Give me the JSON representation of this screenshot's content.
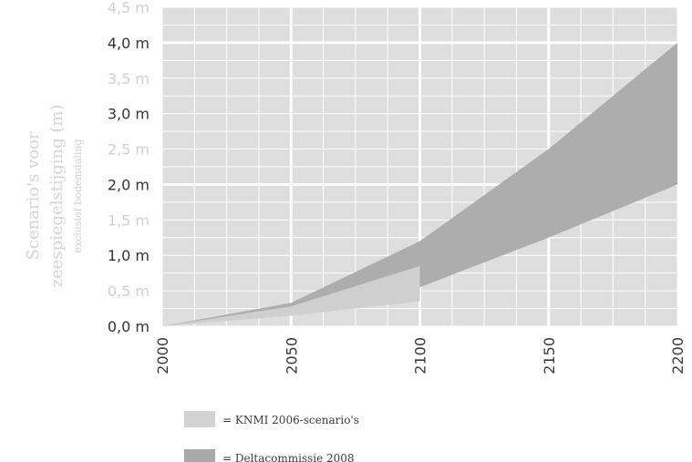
{
  "chart_data": {
    "type": "area",
    "ylabel_line1": "Scenario's voor",
    "ylabel_line2": "zeespiegelstijging (m)",
    "ylabel_line3": "exclusief bodemdaling",
    "xlim": [
      2000,
      2200
    ],
    "ylim": [
      0,
      4.5
    ],
    "x_ticks": [
      2000,
      2050,
      2100,
      2150,
      2200
    ],
    "x_tick_labels": [
      "2000",
      "2050",
      "2100",
      "2150",
      "2200"
    ],
    "y_ticks": [
      0,
      0.5,
      1.0,
      1.5,
      2.0,
      2.5,
      3.0,
      3.5,
      4.0,
      4.5
    ],
    "y_tick_labels": [
      "0,0 m",
      "0,5 m",
      "1,0 m",
      "1,5 m",
      "2,0 m",
      "2,5 m",
      "3,0 m",
      "3,5 m",
      "4,0 m",
      "4,5 m"
    ],
    "y_tick_emphasis": [
      true,
      false,
      true,
      false,
      true,
      false,
      true,
      false,
      true,
      false
    ],
    "grid": true,
    "series": [
      {
        "name": "Deltacommissie 2008",
        "color": "#adadad",
        "x": [
          2000,
          2050,
          2100,
          2150,
          2200
        ],
        "lower": [
          0.0,
          0.2,
          0.55,
          1.25,
          2.0
        ],
        "upper": [
          0.0,
          0.33,
          1.2,
          2.5,
          4.0
        ]
      },
      {
        "name": "KNMI 2006-scenario's",
        "color": "#cfcfcf",
        "x": [
          2000,
          2050,
          2100
        ],
        "lower": [
          0.0,
          0.15,
          0.35
        ],
        "upper": [
          0.0,
          0.28,
          0.85
        ]
      }
    ],
    "legend": [
      {
        "label": "= KNMI 2006-scenario's",
        "color": "#d2d2d2"
      },
      {
        "label": "= Deltacommissie 2008",
        "color": "#a9a9a9"
      }
    ],
    "legend_position": "bottom"
  }
}
